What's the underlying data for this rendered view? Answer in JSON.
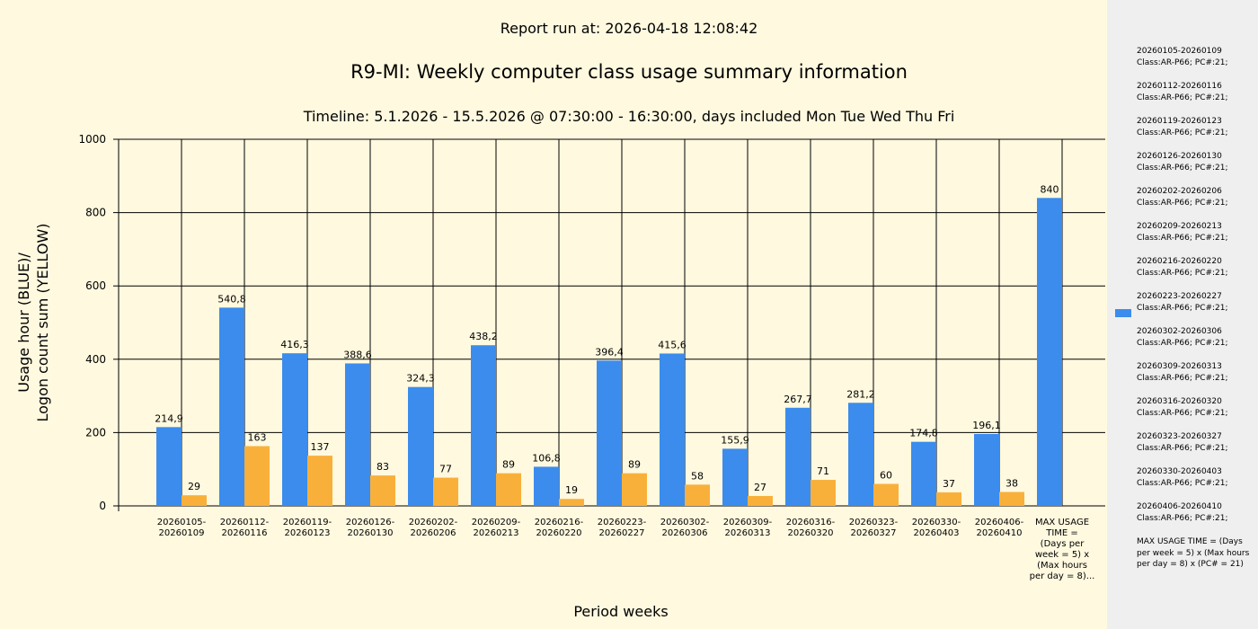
{
  "header": {
    "report_run": "Report run at: 2026-04-18 12:08:42",
    "title": "R9-MI: Weekly computer class usage summary information",
    "subtitle": "Timeline:  5.1.2026  - 15.5.2026  @  07:30:00 -  16:30:00, days included Mon Tue Wed Thu Fri"
  },
  "chart_data": {
    "type": "bar",
    "title": "R9-MI: Weekly computer class usage summary information",
    "xlabel": "Period weeks",
    "ylabel_line1": "Usage hour (BLUE)/",
    "ylabel_line2": "Logon count sum (YELLOW)",
    "ylim": [
      0,
      1000
    ],
    "yticks": [
      0,
      200,
      400,
      600,
      800,
      1000
    ],
    "grid": true,
    "categories": [
      [
        "20260105-",
        "20260109"
      ],
      [
        "20260112-",
        "20260116"
      ],
      [
        "20260119-",
        "20260123"
      ],
      [
        "20260126-",
        "20260130"
      ],
      [
        "20260202-",
        "20260206"
      ],
      [
        "20260209-",
        "20260213"
      ],
      [
        "20260216-",
        "20260220"
      ],
      [
        "20260223-",
        "20260227"
      ],
      [
        "20260302-",
        "20260306"
      ],
      [
        "20260309-",
        "20260313"
      ],
      [
        "20260316-",
        "20260320"
      ],
      [
        "20260323-",
        "20260327"
      ],
      [
        "20260330-",
        "20260403"
      ],
      [
        "20260406-",
        "20260410"
      ],
      [
        "MAX USAGE",
        "TIME =",
        "(Days per",
        "week = 5) x",
        "(Max hours",
        "per day = 8)..."
      ]
    ],
    "series": [
      {
        "name": "Usage hour",
        "color": "#3b8ced",
        "values": [
          214.9,
          540.8,
          416.3,
          388.6,
          324.3,
          438.2,
          106.8,
          396.4,
          415.6,
          155.9,
          267.7,
          281.2,
          174.8,
          196.1,
          840
        ],
        "labels": [
          "214,9",
          "540,8",
          "416,3",
          "388,6",
          "324,3",
          "438,2",
          "106,8",
          "396,4",
          "415,6",
          "155,9",
          "267,7",
          "281,2",
          "174,8",
          "196,1",
          "840"
        ]
      },
      {
        "name": "Logon count sum",
        "color": "#f9b03a",
        "values": [
          29,
          163,
          137,
          83,
          77,
          89,
          19,
          89,
          58,
          27,
          71,
          60,
          37,
          38,
          null
        ],
        "labels": [
          "29",
          "163",
          "137",
          "83",
          "77",
          "89",
          "19",
          "89",
          "58",
          "27",
          "71",
          "60",
          "37",
          "38",
          ""
        ]
      }
    ]
  },
  "legend": {
    "entries": [
      [
        "20260105-20260109",
        "Class:AR-P66; PC#:21;"
      ],
      [
        "20260112-20260116",
        "Class:AR-P66; PC#:21;"
      ],
      [
        "20260119-20260123",
        "Class:AR-P66; PC#:21;"
      ],
      [
        "20260126-20260130",
        "Class:AR-P66; PC#:21;"
      ],
      [
        "20260202-20260206",
        "Class:AR-P66; PC#:21;"
      ],
      [
        "20260209-20260213",
        "Class:AR-P66; PC#:21;"
      ],
      [
        "20260216-20260220",
        "Class:AR-P66; PC#:21;"
      ],
      [
        "20260223-20260227",
        "Class:AR-P66; PC#:21;"
      ],
      [
        "20260302-20260306",
        "Class:AR-P66; PC#:21;"
      ],
      [
        "20260309-20260313",
        "Class:AR-P66; PC#:21;"
      ],
      [
        "20260316-20260320",
        "Class:AR-P66; PC#:21;"
      ],
      [
        "20260323-20260327",
        "Class:AR-P66; PC#:21;"
      ],
      [
        "20260330-20260403",
        "Class:AR-P66; PC#:21;"
      ],
      [
        "20260406-20260410",
        "Class:AR-P66; PC#:21;"
      ]
    ],
    "max_usage_text": "MAX USAGE TIME = (Days per week = 5) x (Max hours per day = 8) x (PC# = 21)",
    "swatch_color": "#3b8ced"
  }
}
